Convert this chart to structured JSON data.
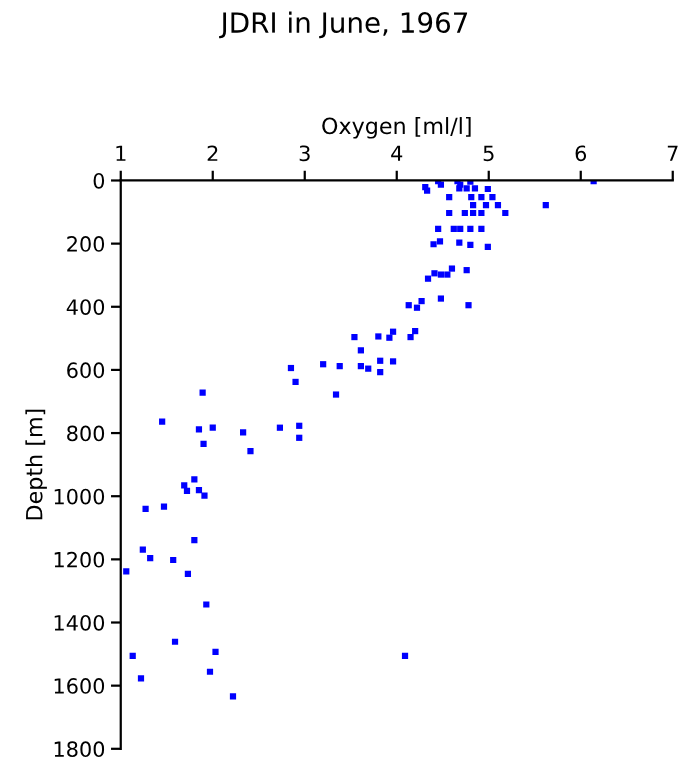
{
  "chart_data": {
    "type": "scatter",
    "title": "JDRI in June, 1967",
    "xlabel": "Oxygen [ml/l]",
    "ylabel": "Depth [m]",
    "xlim": [
      1,
      7
    ],
    "xticks": [
      1,
      2,
      3,
      4,
      5,
      6,
      7
    ],
    "ylim": [
      1800,
      0
    ],
    "yticks": [
      0,
      200,
      400,
      600,
      800,
      1000,
      1200,
      1400,
      1600,
      1800
    ],
    "marker": "square",
    "grid": false,
    "legend": false,
    "series": [
      {
        "color": "#0000ff",
        "x": [
          4.31,
          4.33,
          4.45,
          4.48,
          4.66,
          4.69,
          4.68,
          4.8,
          4.85,
          4.76,
          4.99,
          4.57,
          4.81,
          4.92,
          5.04,
          5.1,
          4.83,
          4.97,
          5.62,
          6.14,
          4.57,
          4.74,
          4.83,
          4.92,
          5.18,
          4.45,
          4.62,
          4.69,
          4.8,
          4.92,
          4.4,
          4.47,
          4.68,
          4.8,
          4.99,
          4.34,
          4.41,
          4.48,
          4.55,
          4.6,
          4.76,
          4.13,
          4.22,
          4.27,
          4.48,
          4.78,
          3.96,
          4.2,
          4.15,
          3.92,
          3.54,
          3.8,
          3.61,
          3.82,
          3.96,
          3.69,
          3.61,
          3.82,
          3.38,
          3.2,
          2.85,
          2.9,
          3.34,
          1.89,
          1.45,
          1.85,
          2.0,
          1.9,
          2.33,
          2.73,
          2.94,
          2.94,
          2.41,
          1.8,
          1.69,
          1.72,
          1.85,
          1.91,
          1.27,
          1.47,
          1.8,
          1.24,
          1.32,
          1.57,
          1.06,
          1.73,
          1.93,
          1.59,
          2.03,
          1.13,
          4.09,
          1.97,
          1.22,
          2.22
        ],
        "values": [
          21,
          32,
          2,
          13,
          2,
          13,
          25,
          4,
          25,
          25,
          27,
          53,
          53,
          53,
          53,
          78,
          78,
          78,
          78,
          2,
          103,
          103,
          103,
          103,
          103,
          153,
          153,
          153,
          153,
          153,
          202,
          193,
          197,
          204,
          210,
          311,
          294,
          298,
          298,
          279,
          284,
          395,
          403,
          382,
          374,
          395,
          479,
          477,
          496,
          498,
          496,
          494,
          538,
          571,
          573,
          596,
          588,
          607,
          588,
          582,
          594,
          638,
          678,
          672,
          764,
          788,
          783,
          834,
          798,
          783,
          777,
          815,
          857,
          947,
          966,
          983,
          981,
          998,
          1040,
          1033,
          1139,
          1169,
          1196,
          1202,
          1238,
          1246,
          1343,
          1461,
          1493,
          1506,
          1506,
          1556,
          1577,
          1634
        ]
      }
    ]
  }
}
